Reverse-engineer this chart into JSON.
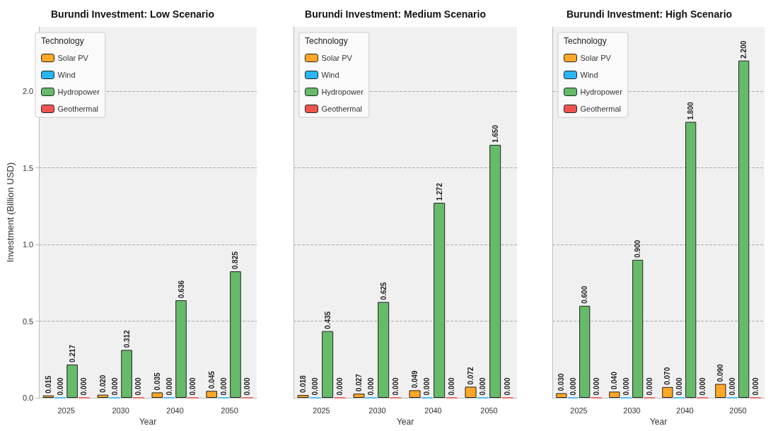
{
  "chart_data": [
    {
      "type": "bar",
      "title": "Burundi Investment: Low Scenario",
      "xlabel": "Year",
      "ylabel": "Investment (Billion USD)",
      "legend_title": "Technology",
      "categories": [
        "2025",
        "2030",
        "2040",
        "2050"
      ],
      "ylim": [
        0,
        2.42
      ],
      "yticks": [
        {
          "value": 0,
          "label": "0.0"
        },
        {
          "value": 0.5,
          "label": "0.5"
        },
        {
          "value": 1,
          "label": "1.0"
        },
        {
          "value": 1.5,
          "label": "1.5"
        },
        {
          "value": 2,
          "label": "2.0"
        }
      ],
      "grid": "y",
      "legend": "top left",
      "series": [
        {
          "name": "Solar PV",
          "color": "#ffa726",
          "values": [
            0.015,
            0.02,
            0.035,
            0.045
          ],
          "value_labels": [
            "0.015",
            "0.020",
            "0.035",
            "0.045"
          ]
        },
        {
          "name": "Wind",
          "color": "#29b6f6",
          "values": [
            0,
            0,
            0,
            0
          ],
          "value_labels": [
            "0.000",
            "0.000",
            "0.000",
            "0.000"
          ]
        },
        {
          "name": "Hydropower",
          "color": "#66bb6a",
          "values": [
            0.217,
            0.312,
            0.636,
            0.825
          ],
          "value_labels": [
            "0.217",
            "0.312",
            "0.636",
            "0.825"
          ]
        },
        {
          "name": "Geothermal",
          "color": "#ef5350",
          "values": [
            0,
            0,
            0,
            0
          ],
          "value_labels": [
            "0.000",
            "0.000",
            "0.000",
            "0.000"
          ]
        }
      ]
    },
    {
      "type": "bar",
      "title": "Burundi Investment: Medium Scenario",
      "xlabel": "Year",
      "legend_title": "Technology",
      "categories": [
        "2025",
        "2030",
        "2040",
        "2050"
      ],
      "ylim": [
        0,
        2.42
      ],
      "yticks": [
        0,
        0.5,
        1,
        1.5,
        2
      ],
      "grid": "y",
      "legend": "top left",
      "tick_labels": "x",
      "series": [
        {
          "name": "Solar PV",
          "color": "#ffa726",
          "values": [
            0.018,
            0.027,
            0.049,
            0.072
          ],
          "value_labels": [
            "0.018",
            "0.027",
            "0.049",
            "0.072"
          ]
        },
        {
          "name": "Wind",
          "color": "#29b6f6",
          "values": [
            0,
            0,
            0,
            0
          ],
          "value_labels": [
            "0.000",
            "0.000",
            "0.000",
            "0.000"
          ]
        },
        {
          "name": "Hydropower",
          "color": "#66bb6a",
          "values": [
            0.435,
            0.625,
            1.272,
            1.65
          ],
          "value_labels": [
            "0.435",
            "0.625",
            "1.272",
            "1.650"
          ]
        },
        {
          "name": "Geothermal",
          "color": "#ef5350",
          "values": [
            0,
            0,
            0,
            0
          ],
          "value_labels": [
            "0.000",
            "0.000",
            "0.000",
            "0.000"
          ]
        }
      ]
    },
    {
      "type": "bar",
      "title": "Burundi Investment: High Scenario",
      "xlabel": "Year",
      "legend_title": "Technology",
      "categories": [
        "2025",
        "2030",
        "2040",
        "2050"
      ],
      "ylim": [
        0,
        2.42
      ],
      "yticks": [
        0,
        0.5,
        1,
        1.5,
        2
      ],
      "grid": "y",
      "legend": "top left",
      "tick_labels": "x",
      "series": [
        {
          "name": "Solar PV",
          "color": "#ffa726",
          "values": [
            0.03,
            0.04,
            0.07,
            0.09
          ],
          "value_labels": [
            "0.030",
            "0.040",
            "0.070",
            "0.090"
          ]
        },
        {
          "name": "Wind",
          "color": "#29b6f6",
          "values": [
            0,
            0,
            0,
            0
          ],
          "value_labels": [
            "0.000",
            "0.000",
            "0.000",
            "0.000"
          ]
        },
        {
          "name": "Hydropower",
          "color": "#66bb6a",
          "values": [
            0.6,
            0.9,
            1.8,
            2.2
          ],
          "value_labels": [
            "0.600",
            "0.900",
            "1.800",
            "2.200"
          ]
        },
        {
          "name": "Geothermal",
          "color": "#ef5350",
          "values": [
            0,
            0,
            0,
            0
          ],
          "value_labels": [
            "0.000",
            "0.000",
            "0.000",
            "0.000"
          ]
        }
      ]
    }
  ]
}
